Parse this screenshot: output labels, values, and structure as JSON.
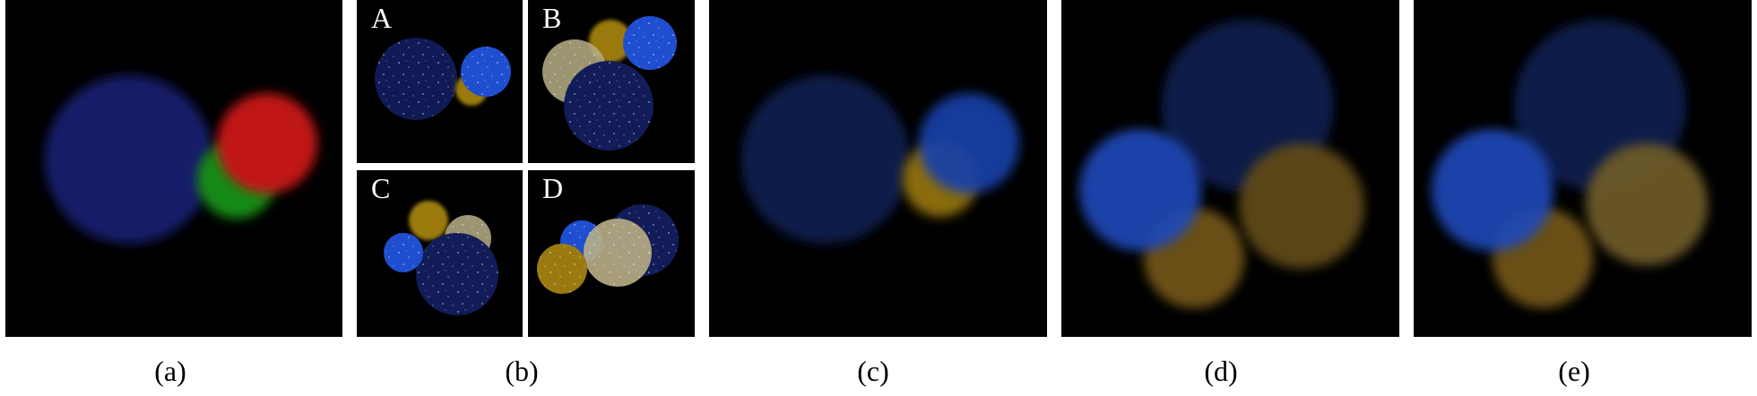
{
  "figure": {
    "captions": [
      "(a)",
      "(b)",
      "(c)",
      "(d)",
      "(e)"
    ],
    "subpanel_labels": [
      "A",
      "B",
      "C",
      "D"
    ]
  },
  "colors": {
    "dark_blue": "#16247a",
    "blue": "#1f4fd0",
    "red": "#c81414",
    "green": "#1a9a1a",
    "yellow": "#9a7a10",
    "pale_yellow": "#cfc497",
    "background": "#000000"
  }
}
